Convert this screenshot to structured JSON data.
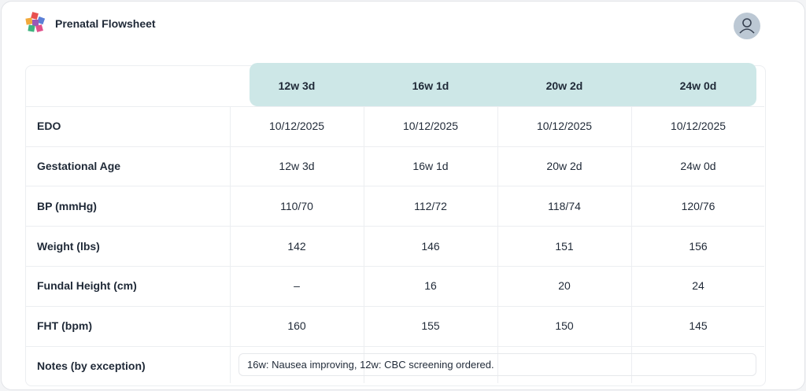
{
  "header": {
    "title": "Prenatal Flowsheet"
  },
  "table": {
    "columns": [
      "12w 3d",
      "16w 1d",
      "20w 2d",
      "24w 0d"
    ],
    "rows": [
      {
        "label": "EDO",
        "values": [
          "10/12/2025",
          "10/12/2025",
          "10/12/2025",
          "10/12/2025"
        ]
      },
      {
        "label": "Gestational Age",
        "values": [
          "12w 3d",
          "16w 1d",
          "20w 2d",
          "24w 0d"
        ]
      },
      {
        "label": "BP (mmHg)",
        "values": [
          "110/70",
          "112/72",
          "118/74",
          "120/76"
        ]
      },
      {
        "label": "Weight (lbs)",
        "values": [
          142,
          146,
          151,
          156
        ]
      },
      {
        "label": "Fundal Height (cm)",
        "values": [
          "–",
          16,
          20,
          24
        ]
      },
      {
        "label": "FHT (bpm)",
        "values": [
          160,
          155,
          150,
          145
        ]
      }
    ],
    "notes": {
      "label": "Notes (by exception)",
      "text": "16w: Nausea improving, 12w: CBC screening ordered."
    }
  }
}
